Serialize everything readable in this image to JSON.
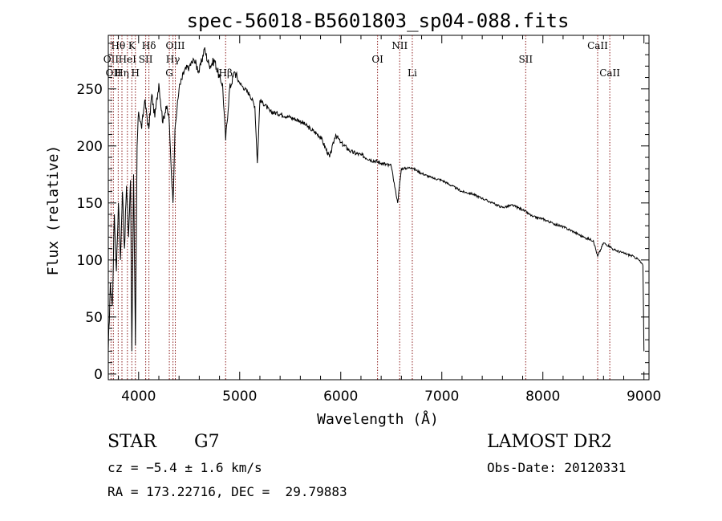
{
  "chart_data": {
    "type": "line",
    "title": "spec-56018-B5601803_sp04-088.fits",
    "xlabel": "Wavelength (Å)",
    "ylabel": "Flux (relative)",
    "xlim": [
      3700,
      9050
    ],
    "ylim": [
      -5,
      297
    ],
    "xticks": [
      4000,
      5000,
      6000,
      7000,
      8000,
      9000
    ],
    "yticks": [
      0,
      50,
      100,
      150,
      200,
      250
    ],
    "grid": false,
    "line_color": "#000000",
    "marker_color": "#8b1a1a",
    "series": [
      {
        "x": [
          3700,
          3720,
          3740,
          3760,
          3780,
          3800,
          3820,
          3840,
          3860,
          3880,
          3900,
          3920,
          3933,
          3950,
          3968,
          3985,
          4000,
          4030,
          4060,
          4100,
          4130,
          4160,
          4200,
          4240,
          4270,
          4300,
          4320,
          4340,
          4360,
          4400,
          4450,
          4500,
          4550,
          4600,
          4650,
          4700,
          4750,
          4800,
          4830,
          4861,
          4900,
          4950,
          5000,
          5050,
          5100,
          5150,
          5175,
          5200,
          5250,
          5300,
          5400,
          5500,
          5600,
          5700,
          5800,
          5890,
          5950,
          6000,
          6100,
          6200,
          6300,
          6400,
          6500,
          6563,
          6600,
          6700,
          6800,
          6900,
          7000,
          7100,
          7200,
          7300,
          7400,
          7500,
          7600,
          7700,
          7800,
          7900,
          8000,
          8100,
          8200,
          8300,
          8400,
          8500,
          8542,
          8600,
          8662,
          8700,
          8800,
          8900,
          8950,
          8990,
          9000
        ],
        "y": [
          20,
          80,
          60,
          140,
          90,
          150,
          100,
          160,
          110,
          165,
          120,
          170,
          20,
          175,
          25,
          200,
          230,
          215,
          240,
          215,
          245,
          225,
          255,
          220,
          235,
          225,
          185,
          150,
          215,
          250,
          265,
          270,
          275,
          265,
          285,
          270,
          275,
          260,
          255,
          205,
          250,
          265,
          255,
          250,
          245,
          235,
          185,
          240,
          236,
          230,
          228,
          225,
          222,
          215,
          208,
          190,
          210,
          203,
          195,
          192,
          188,
          185,
          182,
          150,
          180,
          181,
          176,
          172,
          170,
          165,
          160,
          158,
          154,
          150,
          146,
          148,
          144,
          138,
          136,
          132,
          129,
          125,
          120,
          117,
          103,
          115,
          112,
          109,
          106,
          103,
          100,
          95,
          20
        ]
      }
    ],
    "lines": [
      {
        "x": 3798,
        "label": "Hθ",
        "row": 1
      },
      {
        "x": 3727,
        "label": "OII",
        "row": 2
      },
      {
        "x": 3750,
        "label": "OII",
        "row": 3
      },
      {
        "x": 3835,
        "label": "Hη",
        "row": 3
      },
      {
        "x": 3889,
        "label": "HeI",
        "row": 2
      },
      {
        "x": 3933,
        "label": "K",
        "row": 1
      },
      {
        "x": 3968,
        "label": "H",
        "row": 3
      },
      {
        "x": 4070,
        "label": "SII",
        "row": 2
      },
      {
        "x": 4102,
        "label": "Hδ",
        "row": 1
      },
      {
        "x": 4304,
        "label": "G",
        "row": 3
      },
      {
        "x": 4340,
        "label": "Hγ",
        "row": 2
      },
      {
        "x": 4363,
        "label": "OIII",
        "row": 1
      },
      {
        "x": 4861,
        "label": "Hβ",
        "row": 3
      },
      {
        "x": 6364,
        "label": "OI",
        "row": 2
      },
      {
        "x": 6583,
        "label": "NII",
        "row": 1
      },
      {
        "x": 6708,
        "label": "Li",
        "row": 3
      },
      {
        "x": 7830,
        "label": "SII",
        "row": 2
      },
      {
        "x": 8542,
        "label": "CaII",
        "row": 1
      },
      {
        "x": 8662,
        "label": "CaII",
        "row": 3
      }
    ]
  },
  "info": {
    "object_type": "STAR",
    "subclass": "G7",
    "survey": "LAMOST DR2",
    "cz": "cz = −5.4 ± 1.6 km/s",
    "obs_date": "Obs-Date: 20120331",
    "coords": "RA = 173.22716, DEC =  29.79883"
  }
}
